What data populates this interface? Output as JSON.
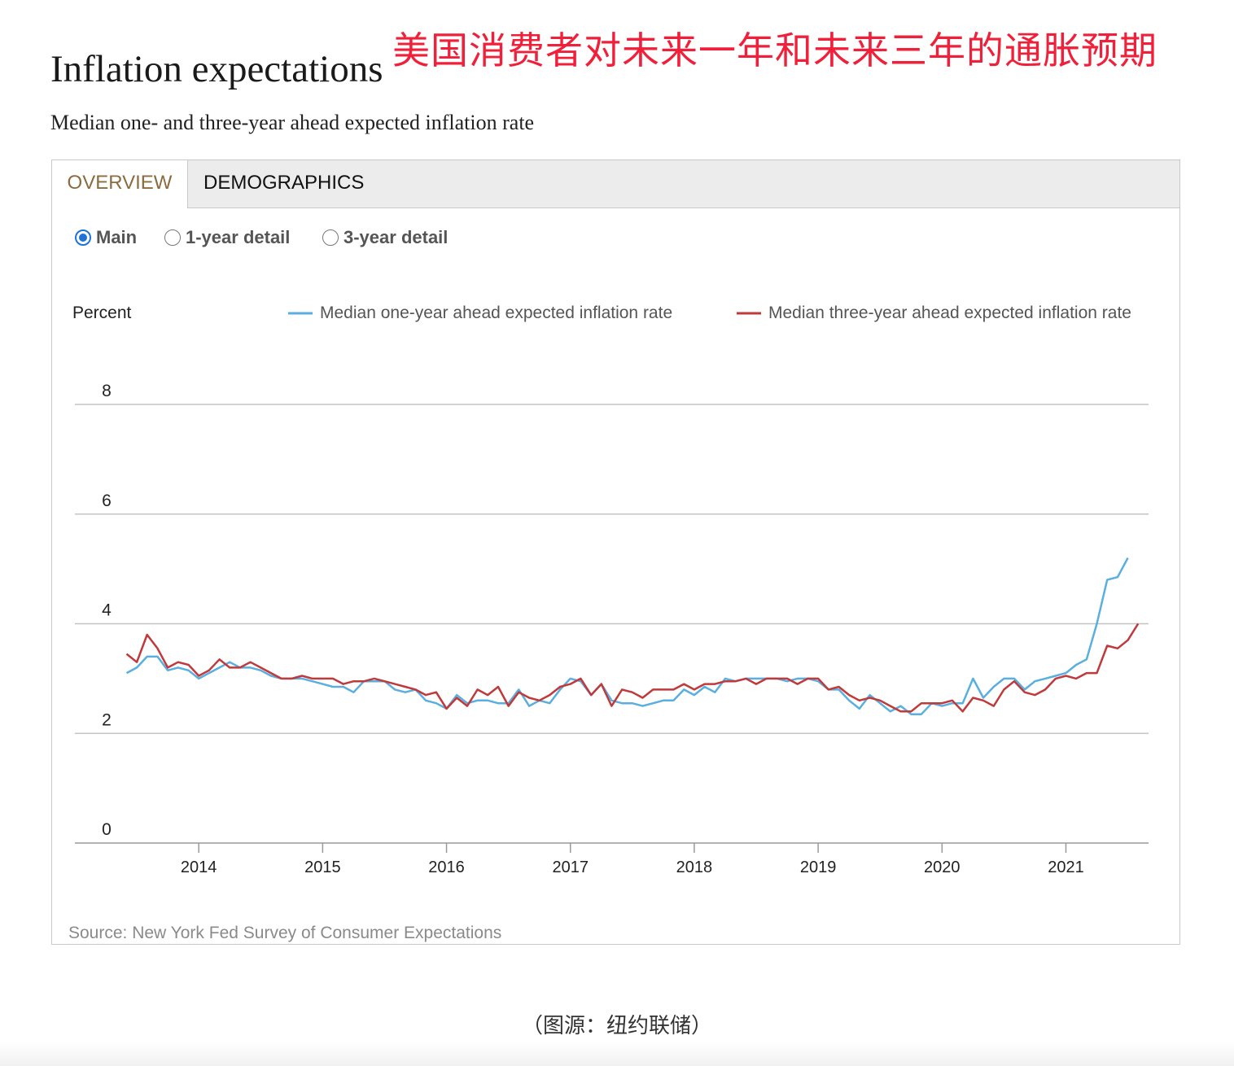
{
  "overlay_title": "美国消费者对未来一年和未来三年的通胀预期",
  "title": "Inflation expectations",
  "subtitle": "Median one- and three-year ahead expected inflation rate",
  "tabs": [
    {
      "label": "OVERVIEW",
      "active": true
    },
    {
      "label": "DEMOGRAPHICS",
      "active": false
    }
  ],
  "radio_options": [
    {
      "label": "Main",
      "checked": true
    },
    {
      "label": "1-year detail",
      "checked": false
    },
    {
      "label": "3-year detail",
      "checked": false
    }
  ],
  "source": "Source: New York Fed Survey of Consumer Expectations",
  "caption": "（图源：纽约联储）",
  "colors": {
    "one_year": "#5aaee0",
    "three_year": "#c0393b",
    "active_tab_text": "#8c6b3f",
    "overlay_title": "#f0203a",
    "radio_checked": "#1e73d8"
  },
  "chart_data": {
    "type": "line",
    "ylabel": "Percent",
    "ylim": [
      0,
      8
    ],
    "yticks": [
      0,
      2,
      4,
      6,
      8
    ],
    "xlim": [
      2013.0,
      2021.667
    ],
    "xticks": [
      2014,
      2015,
      2016,
      2017,
      2018,
      2019,
      2020,
      2021
    ],
    "grid": true,
    "legend_position": "top",
    "series": [
      {
        "name": "Median one-year ahead expected inflation rate",
        "color": "#5aaee0",
        "points": [
          [
            2013.417,
            3.1
          ],
          [
            2013.5,
            3.2
          ],
          [
            2013.583,
            3.4
          ],
          [
            2013.667,
            3.4
          ],
          [
            2013.75,
            3.15
          ],
          [
            2013.833,
            3.2
          ],
          [
            2013.917,
            3.15
          ],
          [
            2014.0,
            3.0
          ],
          [
            2014.083,
            3.1
          ],
          [
            2014.167,
            3.2
          ],
          [
            2014.25,
            3.3
          ],
          [
            2014.333,
            3.2
          ],
          [
            2014.417,
            3.2
          ],
          [
            2014.5,
            3.15
          ],
          [
            2014.583,
            3.05
          ],
          [
            2014.667,
            3.0
          ],
          [
            2014.75,
            3.0
          ],
          [
            2014.833,
            3.0
          ],
          [
            2014.917,
            2.95
          ],
          [
            2015.0,
            2.9
          ],
          [
            2015.083,
            2.85
          ],
          [
            2015.167,
            2.85
          ],
          [
            2015.25,
            2.75
          ],
          [
            2015.333,
            2.95
          ],
          [
            2015.417,
            2.95
          ],
          [
            2015.5,
            2.95
          ],
          [
            2015.583,
            2.8
          ],
          [
            2015.667,
            2.75
          ],
          [
            2015.75,
            2.8
          ],
          [
            2015.833,
            2.6
          ],
          [
            2015.917,
            2.55
          ],
          [
            2016.0,
            2.45
          ],
          [
            2016.083,
            2.7
          ],
          [
            2016.167,
            2.55
          ],
          [
            2016.25,
            2.6
          ],
          [
            2016.333,
            2.6
          ],
          [
            2016.417,
            2.55
          ],
          [
            2016.5,
            2.55
          ],
          [
            2016.583,
            2.8
          ],
          [
            2016.667,
            2.5
          ],
          [
            2016.75,
            2.6
          ],
          [
            2016.833,
            2.55
          ],
          [
            2016.917,
            2.8
          ],
          [
            2017.0,
            3.0
          ],
          [
            2017.083,
            2.95
          ],
          [
            2017.167,
            2.7
          ],
          [
            2017.25,
            2.9
          ],
          [
            2017.333,
            2.6
          ],
          [
            2017.417,
            2.55
          ],
          [
            2017.5,
            2.55
          ],
          [
            2017.583,
            2.5
          ],
          [
            2017.667,
            2.55
          ],
          [
            2017.75,
            2.6
          ],
          [
            2017.833,
            2.6
          ],
          [
            2017.917,
            2.8
          ],
          [
            2018.0,
            2.7
          ],
          [
            2018.083,
            2.85
          ],
          [
            2018.167,
            2.75
          ],
          [
            2018.25,
            3.0
          ],
          [
            2018.333,
            2.95
          ],
          [
            2018.417,
            3.0
          ],
          [
            2018.5,
            3.0
          ],
          [
            2018.583,
            3.0
          ],
          [
            2018.667,
            3.0
          ],
          [
            2018.75,
            2.95
          ],
          [
            2018.833,
            3.0
          ],
          [
            2018.917,
            3.0
          ],
          [
            2019.0,
            2.95
          ],
          [
            2019.083,
            2.8
          ],
          [
            2019.167,
            2.8
          ],
          [
            2019.25,
            2.6
          ],
          [
            2019.333,
            2.45
          ],
          [
            2019.417,
            2.7
          ],
          [
            2019.5,
            2.55
          ],
          [
            2019.583,
            2.4
          ],
          [
            2019.667,
            2.5
          ],
          [
            2019.75,
            2.35
          ],
          [
            2019.833,
            2.35
          ],
          [
            2019.917,
            2.55
          ],
          [
            2020.0,
            2.5
          ],
          [
            2020.083,
            2.55
          ],
          [
            2020.167,
            2.55
          ],
          [
            2020.25,
            3.0
          ],
          [
            2020.333,
            2.65
          ],
          [
            2020.417,
            2.85
          ],
          [
            2020.5,
            3.0
          ],
          [
            2020.583,
            3.0
          ],
          [
            2020.667,
            2.8
          ],
          [
            2020.75,
            2.95
          ],
          [
            2020.833,
            3.0
          ],
          [
            2020.917,
            3.05
          ],
          [
            2021.0,
            3.1
          ],
          [
            2021.083,
            3.25
          ],
          [
            2021.167,
            3.35
          ],
          [
            2021.25,
            4.0
          ],
          [
            2021.333,
            4.8
          ],
          [
            2021.417,
            4.85
          ],
          [
            2021.5,
            5.2
          ]
        ]
      },
      {
        "name": "Median three-year ahead expected inflation rate",
        "color": "#c0393b",
        "points": [
          [
            2013.417,
            3.45
          ],
          [
            2013.5,
            3.3
          ],
          [
            2013.583,
            3.8
          ],
          [
            2013.667,
            3.55
          ],
          [
            2013.75,
            3.2
          ],
          [
            2013.833,
            3.3
          ],
          [
            2013.917,
            3.25
          ],
          [
            2014.0,
            3.05
          ],
          [
            2014.083,
            3.15
          ],
          [
            2014.167,
            3.35
          ],
          [
            2014.25,
            3.2
          ],
          [
            2014.333,
            3.2
          ],
          [
            2014.417,
            3.3
          ],
          [
            2014.5,
            3.2
          ],
          [
            2014.583,
            3.1
          ],
          [
            2014.667,
            3.0
          ],
          [
            2014.75,
            3.0
          ],
          [
            2014.833,
            3.05
          ],
          [
            2014.917,
            3.0
          ],
          [
            2015.0,
            3.0
          ],
          [
            2015.083,
            3.0
          ],
          [
            2015.167,
            2.9
          ],
          [
            2015.25,
            2.95
          ],
          [
            2015.333,
            2.95
          ],
          [
            2015.417,
            3.0
          ],
          [
            2015.5,
            2.95
          ],
          [
            2015.583,
            2.9
          ],
          [
            2015.667,
            2.85
          ],
          [
            2015.75,
            2.8
          ],
          [
            2015.833,
            2.7
          ],
          [
            2015.917,
            2.75
          ],
          [
            2016.0,
            2.45
          ],
          [
            2016.083,
            2.65
          ],
          [
            2016.167,
            2.5
          ],
          [
            2016.25,
            2.8
          ],
          [
            2016.333,
            2.7
          ],
          [
            2016.417,
            2.85
          ],
          [
            2016.5,
            2.5
          ],
          [
            2016.583,
            2.75
          ],
          [
            2016.667,
            2.65
          ],
          [
            2016.75,
            2.6
          ],
          [
            2016.833,
            2.7
          ],
          [
            2016.917,
            2.85
          ],
          [
            2017.0,
            2.9
          ],
          [
            2017.083,
            3.0
          ],
          [
            2017.167,
            2.7
          ],
          [
            2017.25,
            2.9
          ],
          [
            2017.333,
            2.5
          ],
          [
            2017.417,
            2.8
          ],
          [
            2017.5,
            2.75
          ],
          [
            2017.583,
            2.65
          ],
          [
            2017.667,
            2.8
          ],
          [
            2017.75,
            2.8
          ],
          [
            2017.833,
            2.8
          ],
          [
            2017.917,
            2.9
          ],
          [
            2018.0,
            2.8
          ],
          [
            2018.083,
            2.9
          ],
          [
            2018.167,
            2.9
          ],
          [
            2018.25,
            2.95
          ],
          [
            2018.333,
            2.95
          ],
          [
            2018.417,
            3.0
          ],
          [
            2018.5,
            2.9
          ],
          [
            2018.583,
            3.0
          ],
          [
            2018.667,
            3.0
          ],
          [
            2018.75,
            3.0
          ],
          [
            2018.833,
            2.9
          ],
          [
            2018.917,
            3.0
          ],
          [
            2019.0,
            3.0
          ],
          [
            2019.083,
            2.8
          ],
          [
            2019.167,
            2.85
          ],
          [
            2019.25,
            2.7
          ],
          [
            2019.333,
            2.6
          ],
          [
            2019.417,
            2.65
          ],
          [
            2019.5,
            2.6
          ],
          [
            2019.583,
            2.5
          ],
          [
            2019.667,
            2.4
          ],
          [
            2019.75,
            2.4
          ],
          [
            2019.833,
            2.55
          ],
          [
            2019.917,
            2.55
          ],
          [
            2020.0,
            2.55
          ],
          [
            2020.083,
            2.6
          ],
          [
            2020.167,
            2.4
          ],
          [
            2020.25,
            2.65
          ],
          [
            2020.333,
            2.6
          ],
          [
            2020.417,
            2.5
          ],
          [
            2020.5,
            2.8
          ],
          [
            2020.583,
            2.95
          ],
          [
            2020.667,
            2.75
          ],
          [
            2020.75,
            2.7
          ],
          [
            2020.833,
            2.8
          ],
          [
            2020.917,
            3.0
          ],
          [
            2021.0,
            3.05
          ],
          [
            2021.083,
            3.0
          ],
          [
            2021.167,
            3.1
          ],
          [
            2021.25,
            3.1
          ],
          [
            2021.333,
            3.6
          ],
          [
            2021.417,
            3.55
          ],
          [
            2021.5,
            3.7
          ],
          [
            2021.583,
            4.0
          ]
        ]
      }
    ]
  }
}
